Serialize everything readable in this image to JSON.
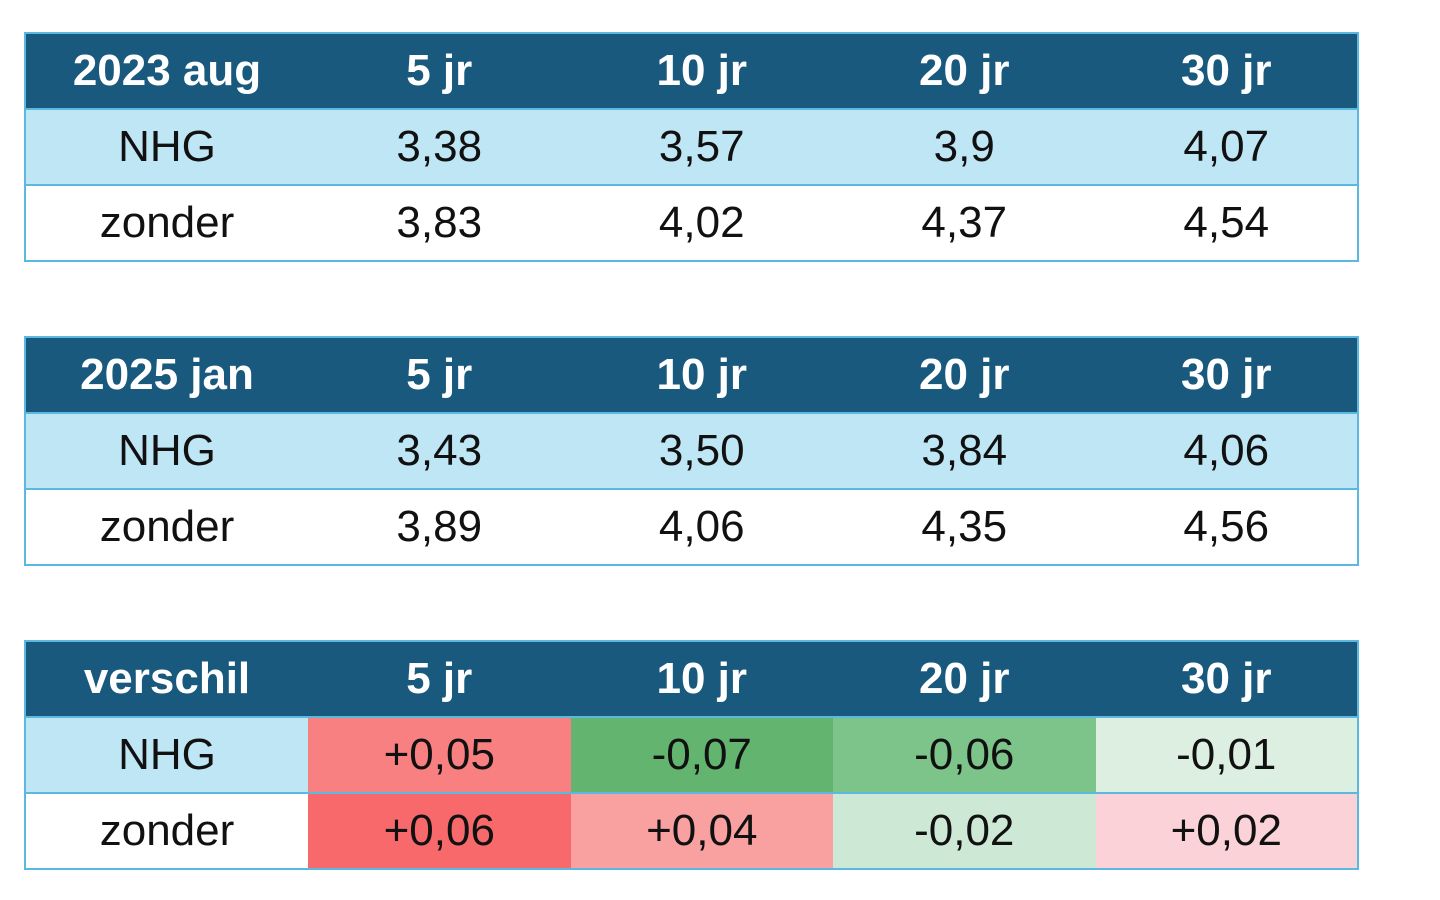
{
  "tables": [
    {
      "header": [
        "2023 aug",
        "5 jr",
        "10 jr",
        "20 jr",
        "30 jr"
      ],
      "rows": [
        [
          "NHG",
          "3,38",
          "3,57",
          "3,9",
          "4,07"
        ],
        [
          "zonder",
          "3,83",
          "4,02",
          "4,37",
          "4,54"
        ]
      ]
    },
    {
      "header": [
        "2025 jan",
        "5 jr",
        "10 jr",
        "20 jr",
        "30 jr"
      ],
      "rows": [
        [
          "NHG",
          "3,43",
          "3,50",
          "3,84",
          "4,06"
        ],
        [
          "zonder",
          "3,89",
          "4,06",
          "4,35",
          "4,56"
        ]
      ]
    },
    {
      "header": [
        "verschil",
        "5 jr",
        "10 jr",
        "20 jr",
        "30 jr"
      ],
      "rows": [
        [
          "NHG",
          "+0,05",
          "-0,07",
          "-0,06",
          "-0,01"
        ],
        [
          "zonder",
          "+0,06",
          "+0,04",
          "-0,02",
          "+0,02"
        ]
      ],
      "colors": [
        [
          null,
          "#f88080",
          "#63b46f",
          "#7dc48b",
          "#dcefe1"
        ],
        [
          null,
          "#f8696b",
          "#f9a1a1",
          "#cde9d5",
          "#fad2d8"
        ]
      ]
    }
  ]
}
